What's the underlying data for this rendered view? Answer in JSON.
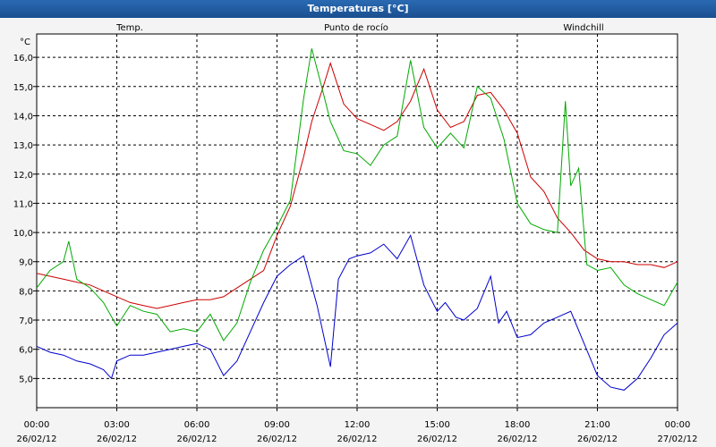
{
  "window": {
    "title": "Temperaturas [°C]"
  },
  "colors": {
    "temp": "#cc0000",
    "dew": "#0000cc",
    "windchill": "#00aa00",
    "grid": "#000000",
    "background": "#ffffff"
  },
  "chart_data": {
    "type": "line",
    "title": "Temperaturas [°C]",
    "ylabel": "°C",
    "xlabel": "",
    "ylim": [
      4.0,
      16.8
    ],
    "xlim": [
      0,
      24
    ],
    "grid": true,
    "legend_placement": "top",
    "y_ticks": [
      "5,0",
      "6,0",
      "7,0",
      "8,0",
      "9,0",
      "10,0",
      "11,0",
      "12,0",
      "13,0",
      "14,0",
      "15,0",
      "16,0"
    ],
    "y_tick_values": [
      5,
      6,
      7,
      8,
      9,
      10,
      11,
      12,
      13,
      14,
      15,
      16
    ],
    "x_ticks": [
      {
        "time": "00:00",
        "date": "26/02/12"
      },
      {
        "time": "03:00",
        "date": "26/02/12"
      },
      {
        "time": "06:00",
        "date": "26/02/12"
      },
      {
        "time": "09:00",
        "date": "26/02/12"
      },
      {
        "time": "12:00",
        "date": "26/02/12"
      },
      {
        "time": "15:00",
        "date": "26/02/12"
      },
      {
        "time": "18:00",
        "date": "26/02/12"
      },
      {
        "time": "21:00",
        "date": "26/02/12"
      },
      {
        "time": "00:00",
        "date": "27/02/12"
      }
    ],
    "x_tick_values": [
      0,
      3,
      6,
      9,
      12,
      15,
      18,
      21,
      24
    ],
    "series": [
      {
        "name": "Temp.",
        "color": "#cc0000",
        "x": [
          0,
          0.5,
          1,
          1.5,
          2,
          2.5,
          3,
          3.5,
          4,
          4.5,
          5,
          5.5,
          6,
          6.5,
          7,
          7.5,
          8,
          8.5,
          9,
          9.5,
          10,
          10.3,
          10.7,
          11,
          11.5,
          12,
          12.5,
          13,
          13.5,
          14,
          14.5,
          15,
          15.5,
          16,
          16.5,
          17,
          17.5,
          18,
          18.5,
          19,
          19.5,
          20,
          20.5,
          21,
          21.5,
          22,
          22.5,
          23,
          23.5,
          24
        ],
        "y": [
          8.6,
          8.5,
          8.4,
          8.3,
          8.2,
          8.0,
          7.8,
          7.6,
          7.5,
          7.4,
          7.5,
          7.6,
          7.7,
          7.7,
          7.8,
          8.1,
          8.4,
          8.7,
          9.9,
          10.9,
          12.6,
          13.8,
          14.9,
          15.8,
          14.4,
          13.9,
          13.7,
          13.5,
          13.8,
          14.5,
          15.6,
          14.2,
          13.6,
          13.8,
          14.7,
          14.8,
          14.2,
          13.4,
          11.9,
          11.4,
          10.5,
          10.0,
          9.4,
          9.1,
          9.0,
          9.0,
          8.9,
          8.9,
          8.8,
          9.0
        ]
      },
      {
        "name": "Punto de rocío",
        "color": "#0000cc",
        "x": [
          0,
          0.5,
          1,
          1.5,
          2,
          2.5,
          2.8,
          3,
          3.5,
          4,
          4.5,
          5,
          5.5,
          6,
          6.5,
          7,
          7.5,
          8,
          8.5,
          9,
          9.5,
          10,
          10.5,
          11,
          11.3,
          11.7,
          12,
          12.5,
          13,
          13.5,
          14,
          14.5,
          15,
          15.3,
          15.7,
          16,
          16.5,
          17,
          17.3,
          17.6,
          18,
          18.5,
          19,
          19.5,
          20,
          20.5,
          21,
          21.5,
          22,
          22.5,
          23,
          23.5,
          24
        ],
        "y": [
          6.1,
          5.9,
          5.8,
          5.6,
          5.5,
          5.3,
          5.0,
          5.6,
          5.8,
          5.8,
          5.9,
          6.0,
          6.1,
          6.2,
          6.0,
          5.1,
          5.6,
          6.6,
          7.6,
          8.5,
          8.9,
          9.2,
          7.5,
          5.4,
          8.4,
          9.1,
          9.2,
          9.3,
          9.6,
          9.1,
          9.9,
          8.2,
          7.3,
          7.6,
          7.1,
          7.0,
          7.4,
          8.5,
          6.9,
          7.3,
          6.4,
          6.5,
          6.9,
          7.1,
          7.3,
          6.2,
          5.1,
          4.7,
          4.6,
          5.0,
          5.7,
          6.5,
          6.9
        ]
      },
      {
        "name": "Windchill",
        "color": "#00aa00",
        "x": [
          0,
          0.5,
          1,
          1.2,
          1.5,
          2,
          2.5,
          3,
          3.5,
          4,
          4.5,
          5,
          5.5,
          6,
          6.5,
          7,
          7.5,
          8,
          8.5,
          9,
          9.5,
          10,
          10.3,
          10.7,
          11,
          11.5,
          12,
          12.5,
          13,
          13.5,
          14,
          14.5,
          15,
          15.5,
          16,
          16.5,
          17,
          17.5,
          18,
          18.5,
          19,
          19.5,
          19.8,
          20,
          20.3,
          20.6,
          21,
          21.5,
          22,
          22.5,
          23,
          23.5,
          24
        ],
        "y": [
          8.1,
          8.7,
          9.0,
          9.7,
          8.4,
          8.1,
          7.6,
          6.8,
          7.5,
          7.3,
          7.2,
          6.6,
          6.7,
          6.6,
          7.2,
          6.3,
          6.9,
          8.3,
          9.4,
          10.2,
          11.1,
          14.6,
          16.3,
          14.9,
          13.8,
          12.8,
          12.7,
          12.3,
          13.0,
          13.3,
          15.9,
          13.6,
          12.9,
          13.4,
          12.9,
          15.0,
          14.6,
          13.2,
          11.0,
          10.3,
          10.1,
          10.0,
          14.5,
          11.6,
          12.2,
          8.9,
          8.7,
          8.8,
          8.2,
          7.9,
          7.7,
          7.5,
          8.3
        ]
      }
    ]
  }
}
